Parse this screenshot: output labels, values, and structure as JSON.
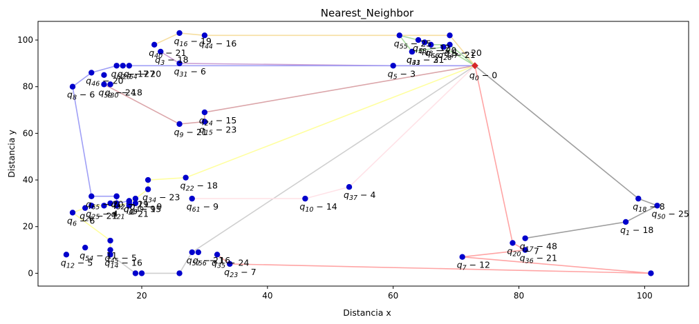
{
  "chart_data": {
    "type": "scatter",
    "title": "Nearest_Neighbor",
    "xlabel": "Distancia x",
    "ylabel": "Distancia y",
    "xlim": [
      3.5,
      107
    ],
    "ylim": [
      -5.5,
      108
    ],
    "xticks": [
      20,
      40,
      60,
      80,
      100
    ],
    "yticks": [
      0,
      20,
      40,
      60,
      80,
      100
    ],
    "grid": false,
    "depot": {
      "x": 73,
      "y": 89,
      "label": "q_0 - 0",
      "color": "#d62728"
    },
    "point_color": "#0000cc",
    "points": [
      {
        "x": 97,
        "y": 22,
        "label": "q_1 - 18"
      },
      {
        "x": 23,
        "y": 95,
        "label": "q_3 - 18"
      },
      {
        "x": 60,
        "y": 89,
        "label": "q_5 - 3"
      },
      {
        "x": 9,
        "y": 26,
        "label": "q_6 - 6"
      },
      {
        "x": 71,
        "y": 7,
        "label": "q_7 - 12"
      },
      {
        "x": 9,
        "y": 80,
        "label": "q_8 - 6"
      },
      {
        "x": 26,
        "y": 64,
        "label": "q_9 - 21"
      },
      {
        "x": 46,
        "y": 32,
        "label": "q_10 - 14"
      },
      {
        "x": 8,
        "y": 8,
        "label": "q_12 - 5"
      },
      {
        "x": 15,
        "y": 8,
        "label": "q_14 - 16"
      },
      {
        "x": 30,
        "y": 65,
        "label": "q_15 - 23"
      },
      {
        "x": 26,
        "y": 103,
        "label": "q_16 - 19"
      },
      {
        "x": 81,
        "y": 15,
        "label": "q_17 - 48"
      },
      {
        "x": 99,
        "y": 32,
        "label": "q_18 - 8"
      },
      {
        "x": 79,
        "y": 13,
        "label": "q_20 - 7"
      },
      {
        "x": 16,
        "y": 29,
        "label": "q_21 - 21"
      },
      {
        "x": 27,
        "y": 41,
        "label": "q_22 - 18"
      },
      {
        "x": 34,
        "y": 4,
        "label": "q_23 - 7"
      },
      {
        "x": 30,
        "y": 69,
        "label": "q_24 - 15"
      },
      {
        "x": 12,
        "y": 29,
        "label": "q_25 - 4"
      },
      {
        "x": 11,
        "y": 28,
        "label": "q_26 - 21"
      },
      {
        "x": 68,
        "y": 97,
        "label": "q_28 - 21"
      },
      {
        "x": 17,
        "y": 89,
        "label": "q_29 - 27"
      },
      {
        "x": 15,
        "y": 81,
        "label": "q_30 - 18"
      },
      {
        "x": 26,
        "y": 90,
        "label": "q_31 - 6"
      },
      {
        "x": 16,
        "y": 33,
        "label": "q_32 - 21"
      },
      {
        "x": 63,
        "y": 95,
        "label": "q_33 - 21"
      },
      {
        "x": 21,
        "y": 36,
        "label": "q_34 - 23"
      },
      {
        "x": 32,
        "y": 8,
        "label": "q_35 - 24"
      },
      {
        "x": 81,
        "y": 10,
        "label": "q_36 - 21"
      },
      {
        "x": 53,
        "y": 37,
        "label": "q_37 - 4"
      },
      {
        "x": 19,
        "y": 32,
        "label": "q_39 - 9"
      },
      {
        "x": 22,
        "y": 98,
        "label": "q_40 - 21"
      },
      {
        "x": 63,
        "y": 95,
        "label": "q_41 - 3"
      },
      {
        "x": 18,
        "y": 31,
        "label": "q_43 - 15"
      },
      {
        "x": 30,
        "y": 102,
        "label": "q_44 - 16"
      },
      {
        "x": 15,
        "y": 10,
        "label": "q_45 - 5"
      },
      {
        "x": 12,
        "y": 86,
        "label": "q_46 - 20"
      },
      {
        "x": 69,
        "y": 98,
        "label": "q_47 - 20"
      },
      {
        "x": 65,
        "y": 99,
        "label": "q_48 - 20"
      },
      {
        "x": 102,
        "y": 29,
        "label": "q_50 - 25"
      },
      {
        "x": 16,
        "y": 33,
        "label": "q_52 - 19"
      },
      {
        "x": 64,
        "y": 100,
        "label": "q_53 - 12"
      },
      {
        "x": 11,
        "y": 11,
        "label": "q_54 - 11"
      },
      {
        "x": 61,
        "y": 102,
        "label": "q_55 - 25"
      },
      {
        "x": 29,
        "y": 9,
        "label": "q_56 - 16"
      },
      {
        "x": 28,
        "y": 9,
        "label": "q_57 - 21"
      },
      {
        "x": 14,
        "y": 81,
        "label": "q_59 - 24"
      },
      {
        "x": 18,
        "y": 31,
        "label": "q_60 - 9"
      },
      {
        "x": 28,
        "y": 32,
        "label": "q_61 - 9"
      },
      {
        "x": 16,
        "y": 89,
        "label": "q_62 - 17"
      },
      {
        "x": 18,
        "y": 89,
        "label": "q_64 - 20"
      },
      {
        "x": 12,
        "y": 33,
        "label": "q_65 - 20"
      },
      {
        "x": 66,
        "y": 98,
        "label": "q_66 - 5"
      }
    ],
    "extra_points": [
      [
        14,
        85
      ],
      [
        16,
        30
      ],
      [
        14,
        29
      ],
      [
        19,
        30
      ],
      [
        15,
        14
      ],
      [
        69,
        102
      ],
      [
        101,
        0
      ],
      [
        26,
        0
      ],
      [
        19,
        0
      ],
      [
        20,
        0
      ],
      [
        18,
        29
      ],
      [
        21,
        40
      ],
      [
        15,
        30
      ],
      [
        18,
        30
      ]
    ],
    "routes": [
      {
        "color": "#ff9f9f",
        "path": [
          [
            73,
            89
          ],
          [
            79,
            13
          ],
          [
            81,
            10
          ],
          [
            71,
            7
          ],
          [
            101,
            0
          ],
          [
            34,
            4
          ],
          [
            32,
            8
          ]
        ]
      },
      {
        "color": "#999999",
        "path": [
          [
            73,
            89
          ],
          [
            99,
            32
          ],
          [
            102,
            29
          ],
          [
            97,
            22
          ],
          [
            81,
            15
          ]
        ]
      },
      {
        "color": "#a4d99a",
        "path": [
          [
            73,
            89
          ],
          [
            69,
            98
          ],
          [
            66,
            98
          ],
          [
            64,
            100
          ],
          [
            61,
            102
          ],
          [
            63,
            95
          ],
          [
            68,
            97
          ],
          [
            73,
            89
          ]
        ]
      },
      {
        "color": "#f5dc9a",
        "path": [
          [
            73,
            89
          ],
          [
            69,
            102
          ],
          [
            30,
            102
          ],
          [
            26,
            103
          ],
          [
            22,
            98
          ]
        ]
      },
      {
        "color": "#c89ad1",
        "path": [
          [
            73,
            89
          ],
          [
            60,
            89
          ],
          [
            26,
            90
          ],
          [
            23,
            95
          ]
        ]
      },
      {
        "color": "#9a9af5",
        "path": [
          [
            73,
            89
          ],
          [
            18,
            89
          ],
          [
            17,
            89
          ],
          [
            16,
            89
          ],
          [
            12,
            86
          ],
          [
            9,
            80
          ],
          [
            12,
            33
          ],
          [
            16,
            33
          ],
          [
            16,
            30
          ],
          [
            18,
            31
          ]
        ]
      },
      {
        "color": "#d9a0a4",
        "path": [
          [
            73,
            89
          ],
          [
            30,
            69
          ],
          [
            30,
            65
          ],
          [
            26,
            64
          ],
          [
            14,
            81
          ],
          [
            15,
            81
          ]
        ]
      },
      {
        "color": "#ffff9a",
        "path": [
          [
            73,
            89
          ],
          [
            27,
            41
          ],
          [
            21,
            40
          ],
          [
            21,
            36
          ],
          [
            19,
            32
          ],
          [
            18,
            30
          ],
          [
            16,
            29
          ],
          [
            12,
            29
          ],
          [
            11,
            28
          ],
          [
            9,
            26
          ],
          [
            15,
            14
          ],
          [
            15,
            10
          ]
        ]
      },
      {
        "color": "#cccccc",
        "path": [
          [
            73,
            89
          ],
          [
            28,
            9
          ],
          [
            26,
            0
          ],
          [
            20,
            0
          ],
          [
            19,
            0
          ],
          [
            15,
            8
          ]
        ]
      },
      {
        "color": "#ffe0e6",
        "path": [
          [
            73,
            89
          ],
          [
            53,
            37
          ],
          [
            46,
            32
          ],
          [
            28,
            32
          ]
        ]
      }
    ]
  }
}
